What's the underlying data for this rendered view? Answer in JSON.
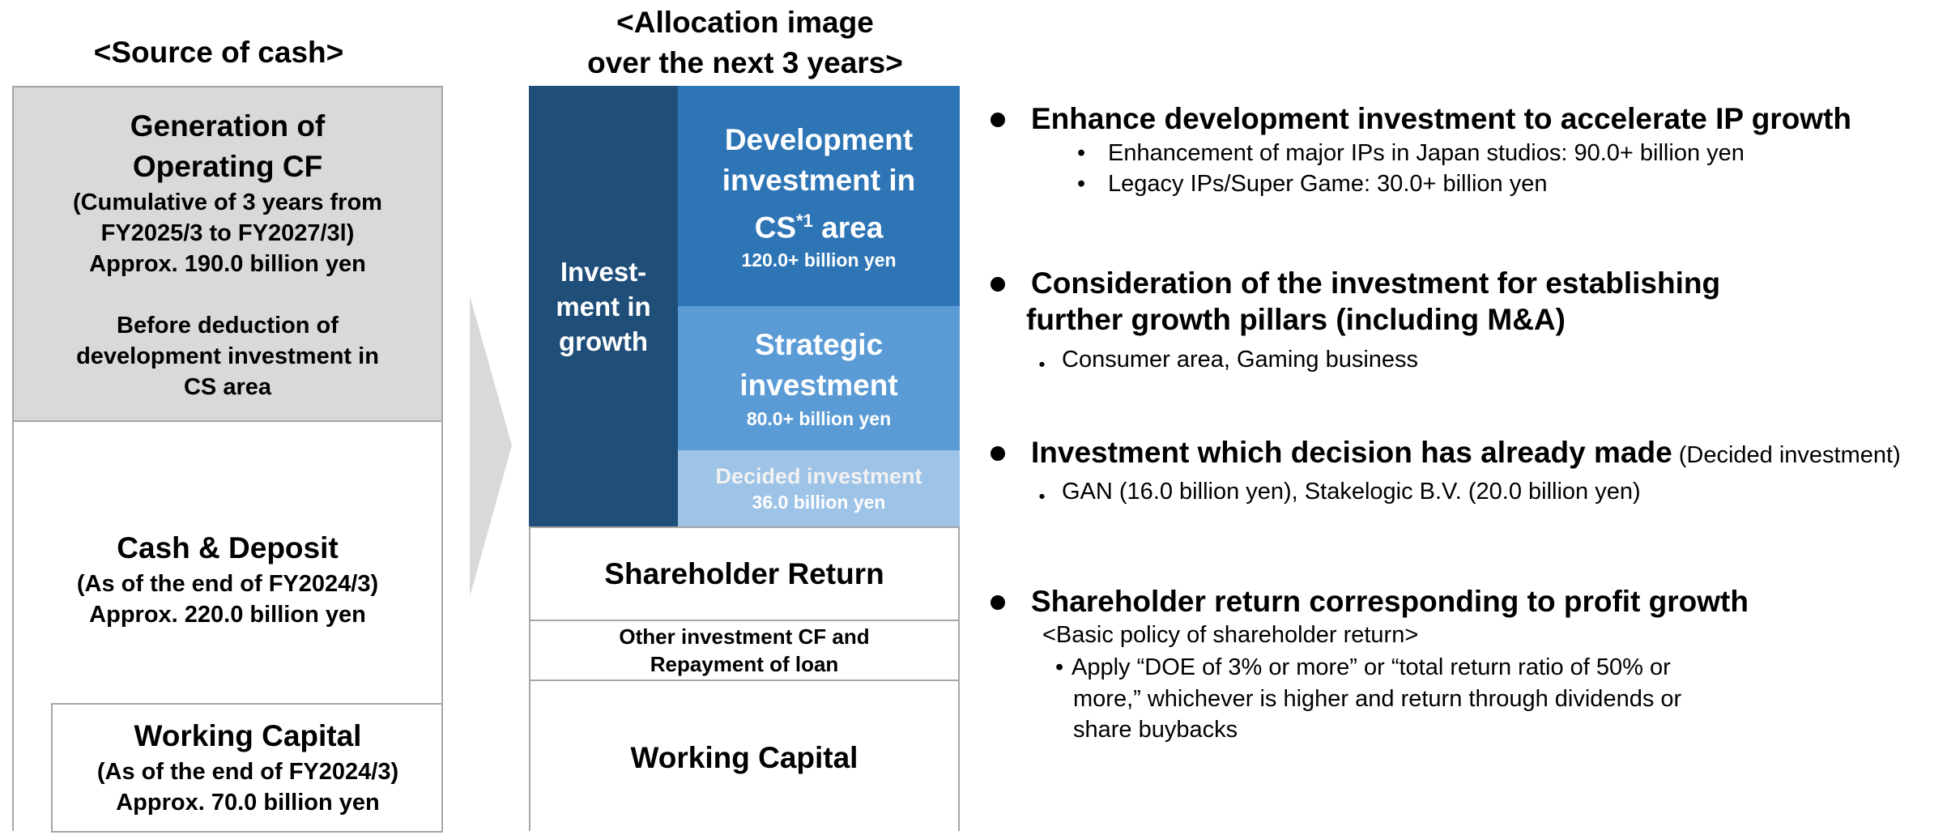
{
  "source": {
    "title": "<Source of cash>",
    "operating": {
      "title_lines": [
        "Generation of",
        "Operating CF"
      ],
      "detail_lines": [
        "(Cumulative of 3 years from",
        "FY2025/3 to FY2027/3l)",
        "Approx. 190.0 billion yen"
      ],
      "note_lines": [
        "Before deduction of",
        "development investment in",
        "CS area"
      ]
    },
    "cash": {
      "title": "Cash & Deposit",
      "detail_lines": [
        "(As of the end of FY2024/3)",
        "Approx. 220.0 billion yen"
      ]
    },
    "working": {
      "title": "Working Capital",
      "detail_lines": [
        "(As of the end of FY2024/3)",
        "Approx. 70.0 billion yen"
      ]
    }
  },
  "allocation": {
    "title_lines": [
      "<Allocation image",
      "over the next 3 years>"
    ],
    "growth_lines": [
      "Invest-",
      "ment in",
      "growth"
    ],
    "development": {
      "title_lines": [
        "Development",
        "investment in"
      ],
      "title_last": "CS",
      "title_sup": "*1",
      "title_suffix": " area",
      "amount": "120.0+ billion yen"
    },
    "strategic": {
      "title_lines": [
        "Strategic",
        "investment"
      ],
      "amount": "80.0+ billion yen"
    },
    "decided": {
      "title": "Decided investment",
      "amount": "36.0 billion yen"
    },
    "shareholder": "Shareholder Return",
    "other_lines": [
      "Other investment CF and",
      "Repayment of loan"
    ],
    "working": "Working Capital"
  },
  "bullets": [
    {
      "heading_lines": [
        "Enhance development investment to accelerate IP growth"
      ],
      "items": [
        "Enhancement of major IPs in Japan studios: 90.0+ billion yen",
        "Legacy IPs/Super Game: 30.0+ billion yen"
      ]
    },
    {
      "heading_lines": [
        "Consideration of the investment for establishing",
        "further growth pillars (including M&A)"
      ],
      "items": [
        "Consumer area, Gaming business"
      ]
    },
    {
      "heading_lines": [
        "Investment which decision has already made"
      ],
      "heading_note": " (Decided investment)",
      "items": [
        "GAN (16.0 billion yen), Stakelogic B.V. (20.0 billion yen)"
      ]
    },
    {
      "heading_lines": [
        "Shareholder return corresponding to profit growth"
      ],
      "subheading": "<Basic policy of shareholder return>",
      "item_lines": [
        "Apply “DOE of 3% or more” or “total return ratio of 50% or",
        "more,” whichever is higher and return through dividends or",
        "share buybacks"
      ]
    }
  ]
}
